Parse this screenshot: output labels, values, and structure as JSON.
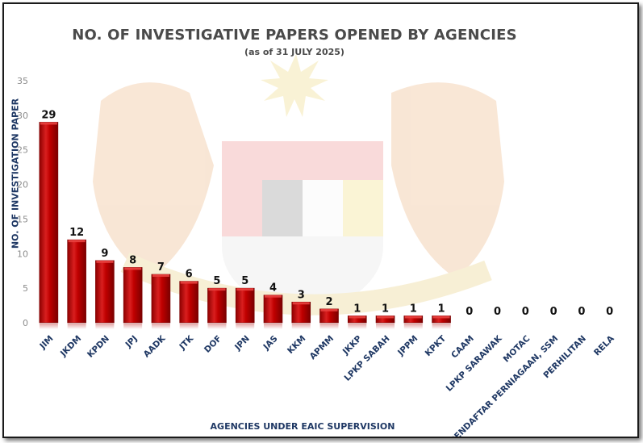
{
  "chart_data": {
    "type": "bar",
    "title": "NO. OF INVESTIGATIVE PAPERS OPENED BY AGENCIES",
    "subtitle": "(as of 31 JULY 2025)",
    "xlabel": "AGENCIES UNDER EAIC SUPERVISION",
    "ylabel": "NO. OF INVESTIGATION PAPER",
    "ylim": [
      0,
      35
    ],
    "yticks": [
      0,
      5,
      10,
      15,
      20,
      25,
      30,
      35
    ],
    "grid": false,
    "categories": [
      "JIM",
      "JKDM",
      "KPDN",
      "JPJ",
      "AADK",
      "JTK",
      "DOF",
      "JPN",
      "JAS",
      "KKM",
      "APMM",
      "JKKP",
      "LPKP SABAH",
      "JPPM",
      "KPKT",
      "CAAM",
      "LPKP SARAWAK",
      "MOTAC",
      "PENDAFTAR PERNIAGAAN, SSM",
      "PERHILITAN",
      "RELA"
    ],
    "values": [
      29,
      12,
      9,
      8,
      7,
      6,
      5,
      5,
      4,
      3,
      2,
      1,
      1,
      1,
      1,
      0,
      0,
      0,
      0,
      0,
      0
    ],
    "colors": {
      "bar": "#c00000",
      "bar_light": "#e8413f",
      "bar_dark": "#7a0000",
      "category_label": "#1f3864",
      "axis_title": "#1f3864",
      "data_label": "#111111",
      "tick_label": "#8c8c8c",
      "title": "#4a4a4a"
    }
  }
}
